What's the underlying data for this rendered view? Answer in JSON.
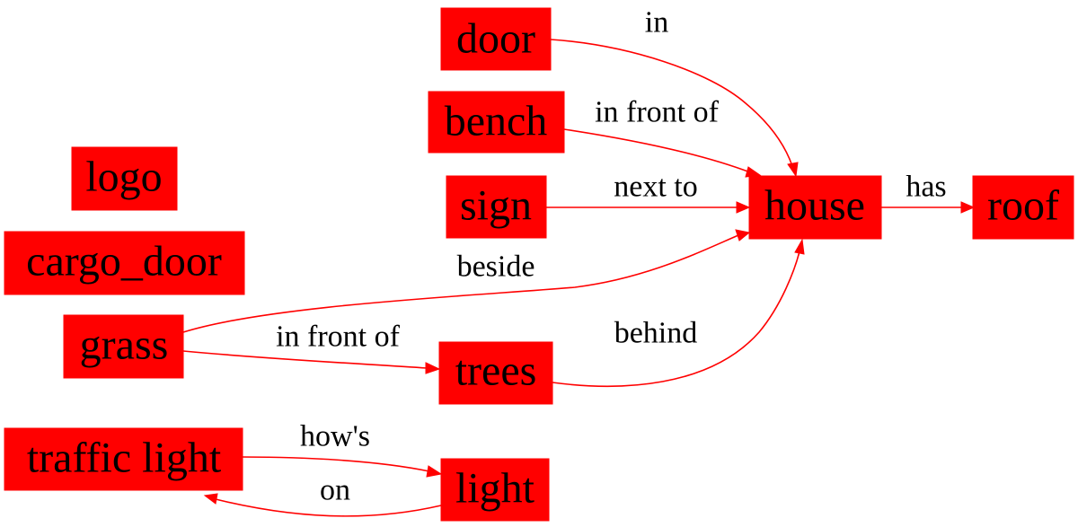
{
  "colors": {
    "node_fill": "#ff0000",
    "edge": "#ff0000",
    "text": "#000000",
    "background": "#ffffff"
  },
  "nodes": {
    "door": "door",
    "bench": "bench",
    "logo": "logo",
    "sign": "sign",
    "house": "house",
    "roof": "roof",
    "cargo_door": "cargo_door",
    "grass": "grass",
    "trees": "trees",
    "traffic_light": "traffic light",
    "light": "light"
  },
  "edges": {
    "door_house": "in",
    "bench_house": "in front of",
    "sign_house": "next to",
    "house_roof": "has",
    "grass_house": "beside",
    "grass_trees": "in front of",
    "trees_house": "behind",
    "traffic_light_light": "how's",
    "light_traffic_light": "on"
  }
}
